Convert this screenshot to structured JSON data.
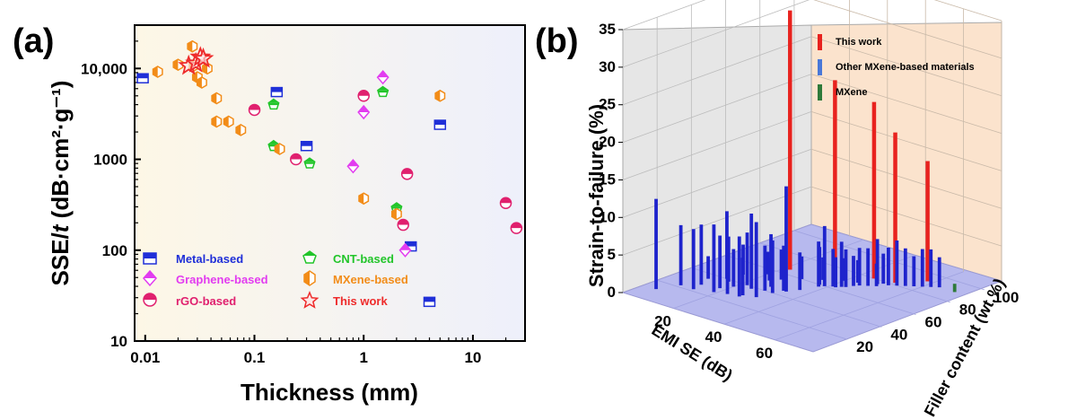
{
  "chart_data": [
    {
      "panel_label": "(a)",
      "type": "scatter",
      "xlabel": "Thickness (mm)",
      "ylabel_main": "SSE/",
      "ylabel_italic": "t",
      "ylabel_unit": " (dB·cm²·g⁻¹)",
      "xscale": "log",
      "yscale": "log",
      "xlim": [
        0.008,
        30
      ],
      "ylim": [
        10,
        30000
      ],
      "xticks": [
        {
          "v": 0.01,
          "label": "0.01"
        },
        {
          "v": 0.1,
          "label": "0.1"
        },
        {
          "v": 1,
          "label": "1"
        },
        {
          "v": 10,
          "label": "10"
        }
      ],
      "yticks": [
        {
          "v": 10,
          "label": "10"
        },
        {
          "v": 100,
          "label": "100"
        },
        {
          "v": 1000,
          "label": "1000"
        },
        {
          "v": 10000,
          "label": "10,000"
        }
      ],
      "series": [
        {
          "name": "Metal-based",
          "marker": "square",
          "color": "#1f2fd8",
          "points": [
            [
              0.0095,
              7800
            ],
            [
              0.16,
              5500
            ],
            [
              0.3,
              1400
            ],
            [
              5,
              2400
            ],
            [
              2.7,
              110
            ],
            [
              4,
              27
            ]
          ]
        },
        {
          "name": "Graphene-based",
          "marker": "diamond",
          "color": "#e23cf0",
          "points": [
            [
              1.5,
              8000
            ],
            [
              1,
              3300
            ],
            [
              0.8,
              840
            ],
            [
              2.4,
              100
            ]
          ]
        },
        {
          "name": "rGO-based",
          "marker": "circle",
          "color": "#e0206e",
          "points": [
            [
              0.1,
              3500
            ],
            [
              1,
              5000
            ],
            [
              0.24,
              1000
            ],
            [
              2.5,
              690
            ],
            [
              2.3,
              190
            ],
            [
              20,
              330
            ],
            [
              25,
              175
            ]
          ]
        },
        {
          "name": "CNT-based",
          "marker": "pentagon",
          "color": "#22c52a",
          "points": [
            [
              0.15,
              4000
            ],
            [
              1.5,
              5500
            ],
            [
              0.15,
              1400
            ],
            [
              0.32,
              900
            ],
            [
              2,
              290
            ]
          ]
        },
        {
          "name": "MXene-based",
          "marker": "hexagon",
          "color": "#f28c18",
          "points": [
            [
              0.013,
              9200
            ],
            [
              0.02,
              11000
            ],
            [
              0.027,
              17500
            ],
            [
              0.028,
              10800
            ],
            [
              0.03,
              8000
            ],
            [
              0.033,
              7000
            ],
            [
              0.037,
              10000
            ],
            [
              0.045,
              4700
            ],
            [
              0.045,
              2600
            ],
            [
              0.058,
              2600
            ],
            [
              0.075,
              2100
            ],
            [
              0.17,
              1300
            ],
            [
              1,
              370
            ],
            [
              2,
              250
            ],
            [
              5,
              5000
            ]
          ]
        },
        {
          "name": "This work",
          "marker": "star",
          "color": "#ee2b2b",
          "points": [
            [
              0.025,
              10700
            ],
            [
              0.029,
              11400
            ],
            [
              0.032,
              13300
            ],
            [
              0.034,
              12800
            ]
          ]
        }
      ]
    },
    {
      "panel_label": "(b)",
      "type": "bar3d",
      "zlabel": "Strain-to-failure (%)",
      "xlabel": "EMI SE (dB)",
      "ylabel": "Filler content (wt.%)",
      "zlim": [
        0,
        35
      ],
      "zticks": [
        0,
        5,
        10,
        15,
        20,
        25,
        30,
        35
      ],
      "xticks": [
        20,
        40,
        60
      ],
      "yticks": [
        20,
        40,
        60,
        80,
        100
      ],
      "legend": [
        {
          "label": "This work",
          "color": "#e8221e"
        },
        {
          "label": "Other MXene-based materials",
          "color": "#4a78d8"
        },
        {
          "label": "MXene",
          "color": "#2f7a3a"
        }
      ],
      "series": [
        {
          "name": "This work",
          "color": "#e8221e",
          "bars": [
            [
              22,
              65,
              34.5
            ],
            [
              35,
              72,
              26
            ],
            [
              45,
              80,
              23.5
            ],
            [
              52,
              82,
              20
            ],
            [
              58,
              92,
              16
            ]
          ]
        },
        {
          "name": "MXene",
          "color": "#2f7a3a",
          "bars": [
            [
              70,
              90,
              1.1
            ]
          ]
        },
        {
          "name": "Other MXene-based materials",
          "color": "#1e23cc",
          "bars": [
            [
              5,
              12,
              12
            ],
            [
              8,
              22,
              8
            ],
            [
              12,
              28,
              8
            ],
            [
              13,
              22,
              8
            ],
            [
              14,
              40,
              9
            ],
            [
              16,
              38,
              6
            ],
            [
              19,
              25,
              9
            ],
            [
              18,
              30,
              7
            ],
            [
              20,
              35,
              5
            ],
            [
              23,
              27,
              7
            ],
            [
              22,
              40,
              7
            ],
            [
              25,
              38,
              10
            ],
            [
              27,
              30,
              5
            ],
            [
              27,
              28,
              8
            ],
            [
              28,
              45,
              7
            ],
            [
              29,
              40,
              6
            ],
            [
              31,
              32,
              10
            ],
            [
              32,
              40,
              7
            ],
            [
              33,
              45,
              6
            ],
            [
              34,
              45,
              14
            ],
            [
              36,
              50,
              5
            ],
            [
              37,
              60,
              5
            ],
            [
              38,
              58,
              6
            ],
            [
              39,
              60,
              8
            ],
            [
              41,
              62,
              5
            ],
            [
              42,
              62,
              4
            ],
            [
              43,
              64,
              6
            ],
            [
              44,
              65,
              5
            ],
            [
              45,
              68,
              4
            ],
            [
              46,
              70,
              5
            ],
            [
              48,
              72,
              5
            ],
            [
              49,
              76,
              6
            ],
            [
              50,
              78,
              4
            ],
            [
              52,
              78,
              5
            ],
            [
              54,
              80,
              6
            ],
            [
              56,
              82,
              5
            ],
            [
              58,
              84,
              4
            ],
            [
              60,
              86,
              5
            ],
            [
              62,
              88,
              5
            ],
            [
              64,
              90,
              4
            ],
            [
              30,
              60,
              3
            ],
            [
              35,
              65,
              3
            ],
            [
              40,
              70,
              3
            ],
            [
              26,
              54,
              4
            ],
            [
              24,
              50,
              3
            ],
            [
              10,
              35,
              3
            ],
            [
              15,
              48,
              4
            ],
            [
              20,
              55,
              3
            ],
            [
              44,
              72,
              3
            ],
            [
              50,
              74,
              3
            ]
          ]
        }
      ]
    }
  ]
}
